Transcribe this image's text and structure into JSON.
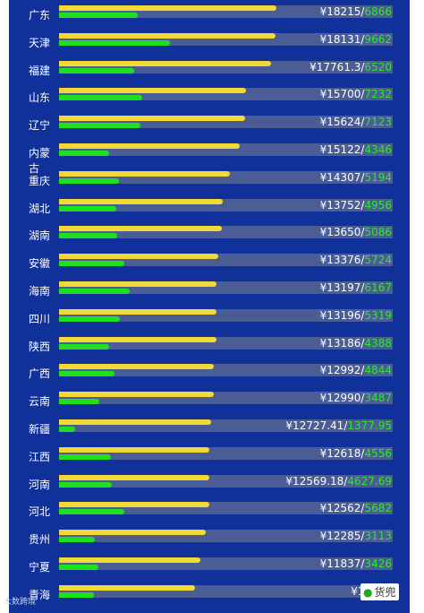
{
  "chart_data": {
    "type": "bar",
    "title": "",
    "series_colors": [
      "#f4d835",
      "#1ee01e"
    ],
    "categories": [
      "广东",
      "天津",
      "福建",
      "山东",
      "辽宁",
      "内蒙古",
      "重庆",
      "湖北",
      "湖南",
      "安徽",
      "海南",
      "四川",
      "陕西",
      "广西",
      "云南",
      "新疆",
      "江西",
      "河南",
      "河北",
      "贵州",
      "宁夏",
      "青海"
    ],
    "series": [
      {
        "values": [
          18215,
          18131,
          17761.3,
          15700,
          15624,
          15122,
          14307,
          13752,
          13650,
          13376,
          13197,
          13196,
          13186,
          12992,
          12990,
          12727.41,
          12618,
          12569.18,
          12562,
          12285,
          11837,
          11402
        ]
      },
      {
        "values": [
          6866,
          9662,
          6520,
          7232,
          7123,
          4346,
          5194,
          4956,
          5086,
          5724,
          6167,
          5319,
          4388,
          4844,
          3487,
          1377.95,
          4556,
          4627.69,
          5682,
          3113,
          3426,
          3000
        ]
      }
    ],
    "value_labels": [
      {
        "a": "¥18215",
        "b": "6866"
      },
      {
        "a": "¥18131",
        "b": "9662"
      },
      {
        "a": "¥17761.3",
        "b": "6520"
      },
      {
        "a": "¥15700",
        "b": "7232"
      },
      {
        "a": "¥15624",
        "b": "7123"
      },
      {
        "a": "¥15122",
        "b": "4346"
      },
      {
        "a": "¥14307",
        "b": "5194"
      },
      {
        "a": "¥13752",
        "b": "4956"
      },
      {
        "a": "¥13650",
        "b": "5086"
      },
      {
        "a": "¥13376",
        "b": "5724"
      },
      {
        "a": "¥13197",
        "b": "6167"
      },
      {
        "a": "¥13196",
        "b": "5319"
      },
      {
        "a": "¥13186",
        "b": "4388"
      },
      {
        "a": "¥12992",
        "b": "4844"
      },
      {
        "a": "¥12990",
        "b": "3487"
      },
      {
        "a": "¥12727.41",
        "b": "1377.95"
      },
      {
        "a": "¥12618",
        "b": "4556"
      },
      {
        "a": "¥12569.18",
        "b": "4627.69"
      },
      {
        "a": "¥12562",
        "b": "5682"
      },
      {
        "a": "¥12285",
        "b": "3113"
      },
      {
        "a": "¥11837",
        "b": "3426"
      },
      {
        "a": "¥11402",
        "b": ""
      }
    ]
  },
  "watermark": {
    "left": "大数跨境",
    "right": "货兜"
  }
}
